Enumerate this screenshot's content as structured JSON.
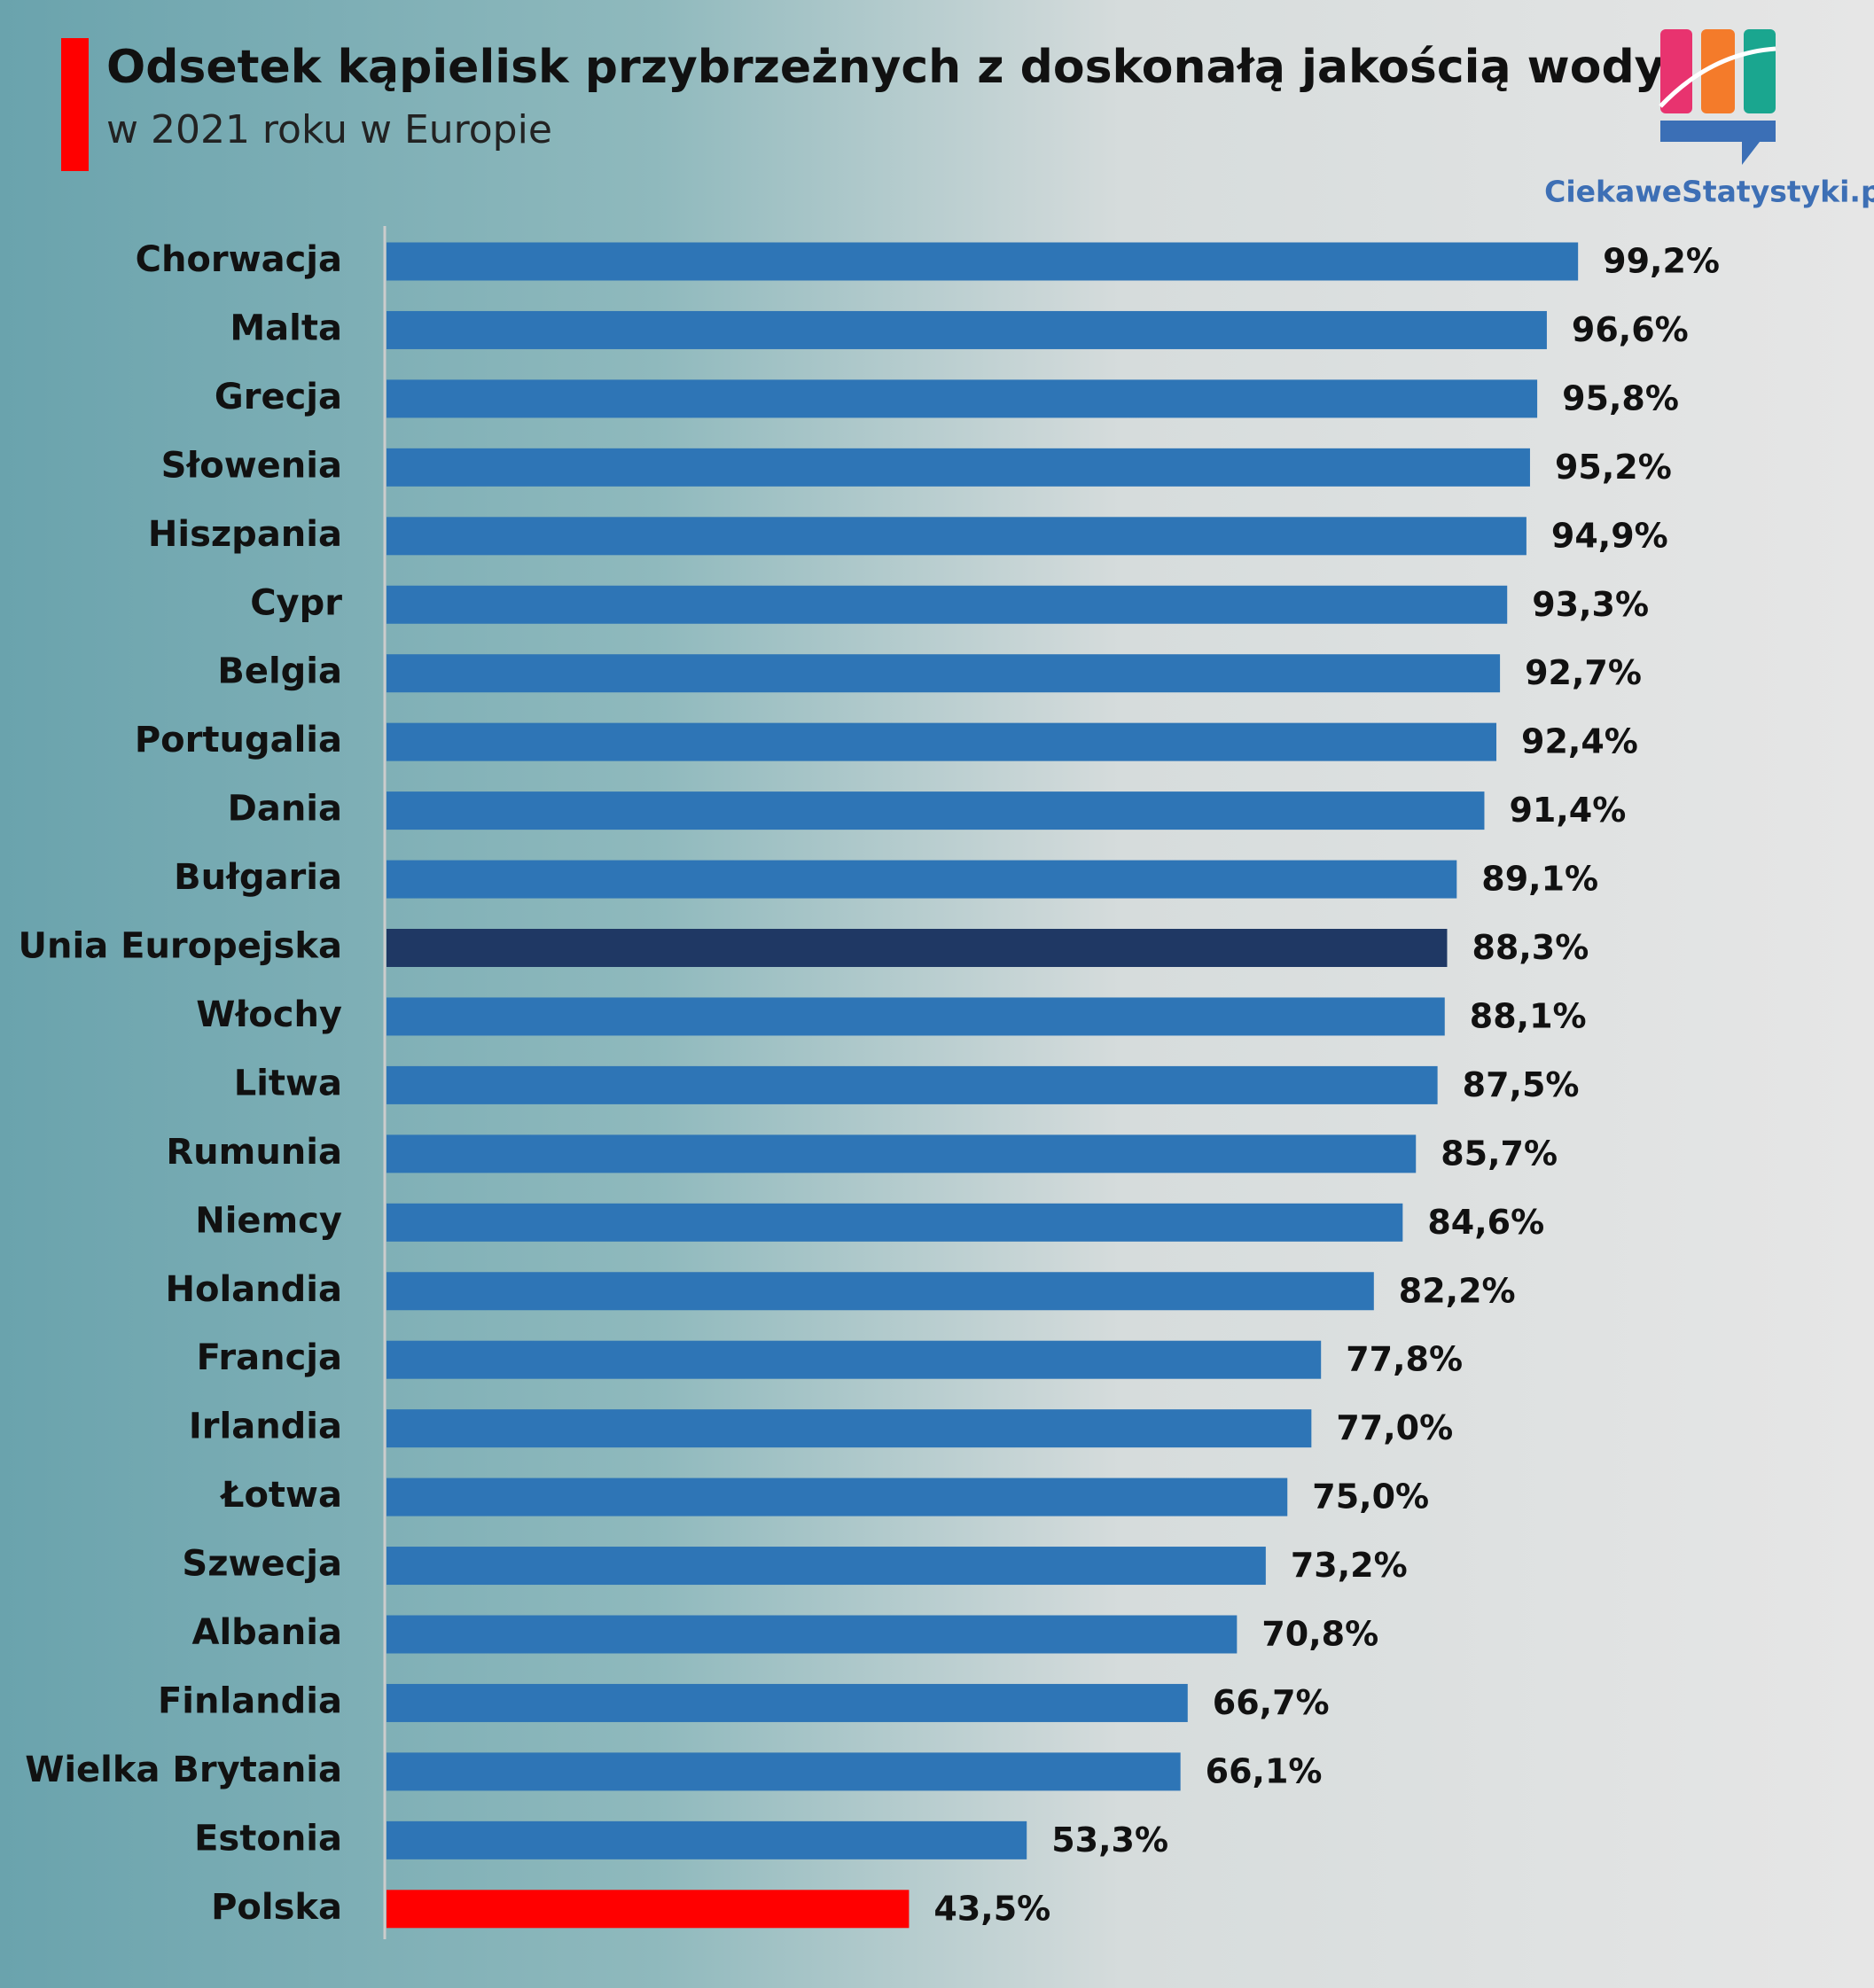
{
  "chart_data": {
    "type": "bar",
    "title": "Odsetek kąpielisk przybrzeżnych z doskonałą jakością wody",
    "subtitle": "w 2021 roku w Europie",
    "categories": [
      "Chorwacja",
      "Malta",
      "Grecja",
      "Słowenia",
      "Hiszpania",
      "Cypr",
      "Belgia",
      "Portugalia",
      "Dania",
      "Bułgaria",
      "Unia Europejska",
      "Włochy",
      "Litwa",
      "Rumunia",
      "Niemcy",
      "Holandia",
      "Francja",
      "Irlandia",
      "Łotwa",
      "Szwecja",
      "Albania",
      "Finlandia",
      "Wielka Brytania",
      "Estonia",
      "Polska"
    ],
    "values": [
      99.2,
      96.6,
      95.8,
      95.2,
      94.9,
      93.3,
      92.7,
      92.4,
      91.4,
      89.1,
      88.3,
      88.1,
      87.5,
      85.7,
      84.6,
      82.2,
      77.8,
      77.0,
      75.0,
      73.2,
      70.8,
      66.7,
      66.1,
      53.3,
      43.5
    ],
    "value_labels": [
      "99,2%",
      "96,6%",
      "95,8%",
      "95,2%",
      "94,9%",
      "93,3%",
      "92,7%",
      "92,4%",
      "91,4%",
      "89,1%",
      "88,3%",
      "88,1%",
      "87,5%",
      "85,7%",
      "84,6%",
      "82,2%",
      "77,8%",
      "77,0%",
      "75,0%",
      "73,2%",
      "70,8%",
      "66,7%",
      "66,1%",
      "53,3%",
      "43,5%"
    ],
    "colors": [
      "#2e75b6",
      "#2e75b6",
      "#2e75b6",
      "#2e75b6",
      "#2e75b6",
      "#2e75b6",
      "#2e75b6",
      "#2e75b6",
      "#2e75b6",
      "#2e75b6",
      "#1f3864",
      "#2e75b6",
      "#2e75b6",
      "#2e75b6",
      "#2e75b6",
      "#2e75b6",
      "#2e75b6",
      "#2e75b6",
      "#2e75b6",
      "#2e75b6",
      "#2e75b6",
      "#2e75b6",
      "#2e75b6",
      "#2e75b6",
      "#ff0000"
    ]
  },
  "logo": {
    "text": "CiekaweStatystyki.pl"
  }
}
